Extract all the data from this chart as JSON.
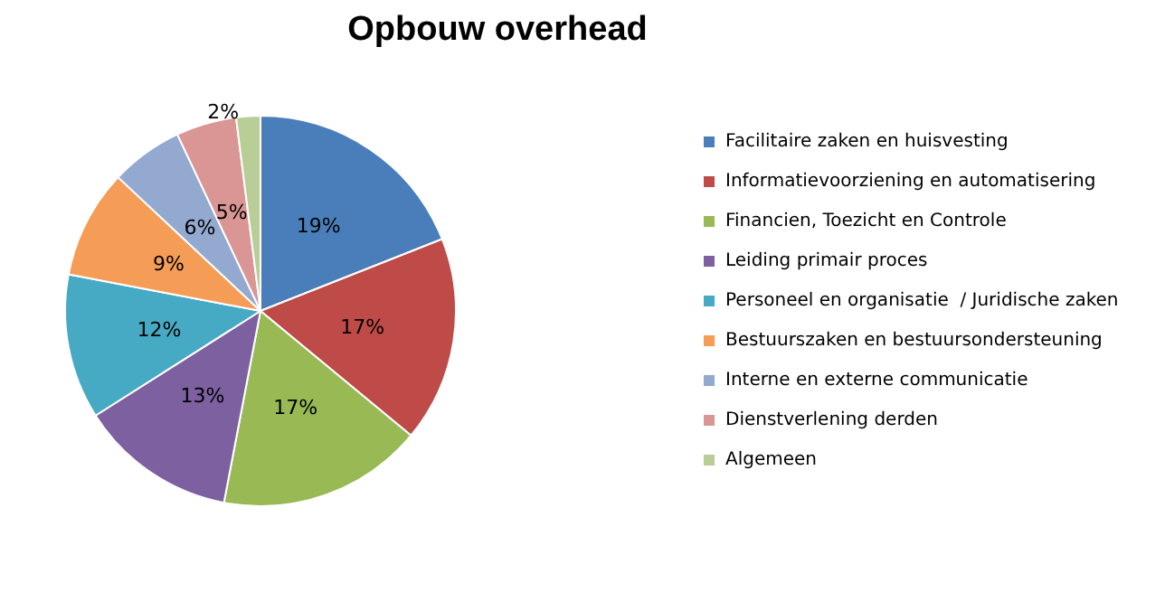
{
  "chart_data": {
    "type": "pie",
    "title": "Opbouw overhead",
    "categories": [
      "Facilitaire zaken en huisvesting",
      "Informatievoorziening en automatisering",
      "Financien, Toezicht en Controle",
      "Leiding primair proces",
      "Personeel en organisatie  / Juridische zaken",
      "Bestuurszaken en bestuursondersteuning",
      "Interne en externe communicatie",
      "Dienstverlening derden",
      "Algemeen"
    ],
    "values": [
      19,
      17,
      17,
      13,
      12,
      9,
      6,
      5,
      2
    ],
    "colors": [
      "#4a7ebb",
      "#be4b48",
      "#98b954",
      "#7d60a0",
      "#46aac5",
      "#f59d56",
      "#93a9d0",
      "#d99694",
      "#b9cd96"
    ],
    "value_labels": [
      "19%",
      "17%",
      "17%",
      "13%",
      "12%",
      "9%",
      "6%",
      "5%",
      "2%"
    ],
    "legend": "right"
  }
}
